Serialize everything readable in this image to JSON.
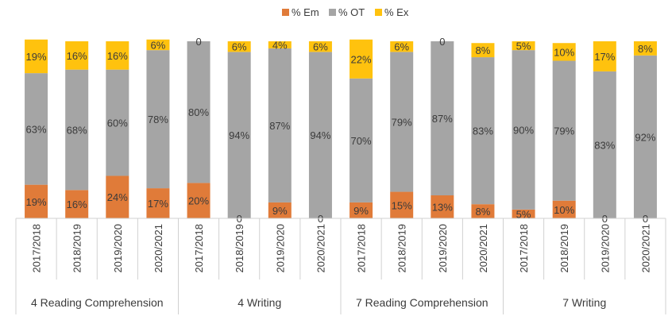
{
  "chart_data": {
    "type": "bar",
    "stacked": true,
    "normalized": true,
    "legend": {
      "placement": "top-center",
      "items": [
        {
          "name": "% Em",
          "color": "#E07B39"
        },
        {
          "name": "% OT",
          "color": "#A5A5A5"
        },
        {
          "name": "% Ex",
          "color": "#FFC20E"
        }
      ]
    },
    "groups": [
      {
        "label": "4 Reading Comprehension",
        "years": [
          "2017/2018",
          "2018/2019",
          "2019/2020",
          "2020/2021"
        ]
      },
      {
        "label": "4 Writing",
        "years": [
          "2017/2018",
          "2018/2019",
          "2019/2020",
          "2020/2021"
        ]
      },
      {
        "label": "7 Reading Comprehension",
        "years": [
          "2017/2018",
          "2018/2019",
          "2019/2020",
          "2020/2021"
        ]
      },
      {
        "label": "7 Writing",
        "years": [
          "2017/2018",
          "2018/2019",
          "2019/2020",
          "2020/2021"
        ]
      }
    ],
    "series": [
      {
        "name": "% Em",
        "color": "#E07B39",
        "values": [
          19,
          16,
          24,
          17,
          20,
          0,
          9,
          0,
          9,
          15,
          13,
          8,
          5,
          10,
          0,
          0
        ],
        "labels": [
          "19%",
          "16%",
          "24%",
          "17%",
          "20%",
          "0",
          "9%",
          "0",
          "9%",
          "15%",
          "13%",
          "8%",
          "5%",
          "10%",
          "0",
          "0"
        ]
      },
      {
        "name": "% OT",
        "color": "#A5A5A5",
        "values": [
          63,
          68,
          60,
          78,
          80,
          94,
          87,
          94,
          70,
          79,
          87,
          83,
          90,
          79,
          83,
          92
        ],
        "labels": [
          "63%",
          "68%",
          "60%",
          "78%",
          "80%",
          "94%",
          "87%",
          "94%",
          "70%",
          "79%",
          "87%",
          "83%",
          "90%",
          "79%",
          "83%",
          "92%"
        ]
      },
      {
        "name": "% Ex",
        "color": "#FFC20E",
        "values": [
          19,
          16,
          16,
          6,
          0,
          6,
          4,
          6,
          22,
          6,
          0,
          8,
          5,
          10,
          17,
          8
        ],
        "labels": [
          "19%",
          "16%",
          "16%",
          "6%",
          "0",
          "6%",
          "4%",
          "6%",
          "22%",
          "6%",
          "0",
          "8%",
          "5%",
          "10%",
          "17%",
          "8%"
        ]
      }
    ]
  }
}
